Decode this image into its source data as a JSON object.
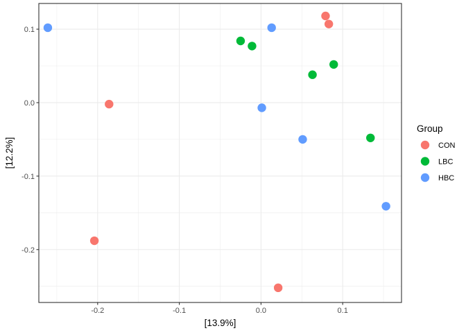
{
  "chart_data": {
    "type": "scatter",
    "title": "",
    "xlabel": "[13.9%]",
    "ylabel": "[12.2%]",
    "xlim": [
      -0.272,
      0.172
    ],
    "ylim": [
      -0.272,
      0.135
    ],
    "x_ticks": [
      -0.2,
      -0.1,
      0.0,
      0.1
    ],
    "x_tick_labels": [
      "-0.2",
      "-0.1",
      "0.0",
      "0.1"
    ],
    "y_ticks": [
      -0.2,
      -0.1,
      0.0,
      0.1
    ],
    "y_tick_labels": [
      "-0.2",
      "-0.1",
      "0.0",
      "0.1"
    ],
    "grid": true,
    "legend": {
      "title": "Group",
      "position": "right"
    },
    "series": [
      {
        "name": "CON",
        "color": "#F8766D",
        "points": [
          [
            0.079,
            0.118
          ],
          [
            0.083,
            0.107
          ],
          [
            -0.186,
            -0.002
          ],
          [
            -0.204,
            -0.188
          ],
          [
            0.021,
            -0.252
          ]
        ]
      },
      {
        "name": "LBC",
        "color": "#00BA38",
        "points": [
          [
            -0.025,
            0.084
          ],
          [
            -0.011,
            0.077
          ],
          [
            0.089,
            0.052
          ],
          [
            0.063,
            0.038
          ],
          [
            0.134,
            -0.048
          ]
        ]
      },
      {
        "name": "HBC",
        "color": "#619CFF",
        "points": [
          [
            -0.261,
            0.102
          ],
          [
            0.013,
            0.102
          ],
          [
            0.001,
            -0.007
          ],
          [
            0.051,
            -0.05
          ],
          [
            0.153,
            -0.141
          ]
        ]
      }
    ]
  }
}
